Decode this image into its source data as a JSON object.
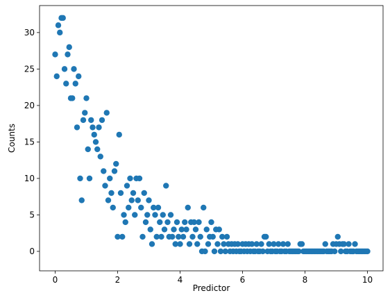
{
  "chart_data": {
    "type": "scatter",
    "xlabel": "Predictor",
    "ylabel": "Counts",
    "color": "#1f77b4",
    "xlim": [
      -0.5,
      10.5
    ],
    "ylim": [
      -2.67,
      33.7
    ],
    "xticks": [
      0,
      2,
      4,
      6,
      8,
      10
    ],
    "yticks": [
      0,
      5,
      10,
      15,
      20,
      25,
      30
    ],
    "grid": false,
    "x": [
      0,
      0.05,
      0.1,
      0.15,
      0.2,
      0.25,
      0.3,
      0.35,
      0.4,
      0.45,
      0.5,
      0.55,
      0.6,
      0.65,
      0.7,
      0.75,
      0.8,
      0.85,
      0.9,
      0.95,
      1,
      1.05,
      1.1,
      1.15,
      1.2,
      1.25,
      1.3,
      1.35,
      1.4,
      1.45,
      1.5,
      1.55,
      1.6,
      1.65,
      1.7,
      1.75,
      1.8,
      1.85,
      1.9,
      1.95,
      2,
      2.05,
      2.1,
      2.15,
      2.2,
      2.25,
      2.3,
      2.35,
      2.4,
      2.45,
      2.5,
      2.55,
      2.6,
      2.65,
      2.7,
      2.75,
      2.8,
      2.85,
      2.9,
      2.95,
      3,
      3.05,
      3.1,
      3.15,
      3.2,
      3.25,
      3.3,
      3.35,
      3.4,
      3.45,
      3.5,
      3.55,
      3.6,
      3.65,
      3.7,
      3.75,
      3.8,
      3.85,
      3.9,
      3.95,
      4,
      4.05,
      4.1,
      4.15,
      4.2,
      4.25,
      4.3,
      4.35,
      4.4,
      4.45,
      4.5,
      4.55,
      4.6,
      4.65,
      4.7,
      4.75,
      4.8,
      4.85,
      4.9,
      4.95,
      5,
      5.05,
      5.1,
      5.15,
      5.2,
      5.25,
      5.3,
      5.35,
      5.4,
      5.45,
      5.5,
      5.55,
      5.6,
      5.65,
      5.7,
      5.75,
      5.8,
      5.85,
      5.9,
      5.95,
      6,
      6.05,
      6.1,
      6.15,
      6.2,
      6.25,
      6.3,
      6.35,
      6.4,
      6.45,
      6.5,
      6.55,
      6.6,
      6.65,
      6.7,
      6.75,
      6.8,
      6.85,
      6.9,
      6.95,
      7,
      7.05,
      7.1,
      7.15,
      7.2,
      7.25,
      7.3,
      7.35,
      7.4,
      7.45,
      7.5,
      7.55,
      7.6,
      7.65,
      7.7,
      7.75,
      7.8,
      7.85,
      7.9,
      7.95,
      8,
      8.05,
      8.1,
      8.15,
      8.2,
      8.25,
      8.3,
      8.35,
      8.4,
      8.45,
      8.5,
      8.55,
      8.6,
      8.65,
      8.7,
      8.75,
      8.8,
      8.85,
      8.9,
      8.95,
      9,
      9.05,
      9.1,
      9.15,
      9.2,
      9.25,
      9.3,
      9.35,
      9.4,
      9.45,
      9.5,
      9.55,
      9.6,
      9.65,
      9.7,
      9.75,
      9.8,
      9.85,
      9.9,
      9.95,
      10
    ],
    "values": [
      27,
      24,
      31,
      30,
      32,
      32,
      25,
      23,
      27,
      28,
      21,
      21,
      25,
      23,
      17,
      24,
      10,
      7,
      18,
      19,
      21,
      14,
      10,
      18,
      17,
      16,
      15,
      14,
      17,
      13,
      18,
      11,
      9,
      19,
      7,
      10,
      8,
      6,
      11,
      12,
      2,
      16,
      8,
      2,
      5,
      4,
      9,
      6,
      10,
      7,
      8,
      5,
      10,
      7,
      10,
      6,
      2,
      8,
      4,
      5,
      7,
      3,
      1,
      6,
      5,
      2,
      6,
      4,
      2,
      5,
      3,
      9,
      4,
      2,
      5,
      2,
      3,
      1,
      4,
      2,
      1,
      3,
      2,
      4,
      3,
      6,
      1,
      4,
      2,
      4,
      3,
      1,
      4,
      2,
      0,
      6,
      0,
      3,
      1,
      2,
      4,
      2,
      0,
      3,
      1,
      3,
      0,
      2,
      1,
      0,
      2,
      1,
      0,
      1,
      0,
      1,
      0,
      1,
      0,
      0,
      1,
      0,
      1,
      0,
      1,
      0,
      1,
      0,
      0,
      1,
      0,
      0,
      1,
      0,
      2,
      2,
      0,
      1,
      0,
      0,
      1,
      0,
      0,
      1,
      0,
      0,
      1,
      0,
      0,
      1,
      0,
      0,
      0,
      0,
      0,
      0,
      0,
      1,
      1,
      0,
      0,
      0,
      0,
      0,
      0,
      0,
      0,
      0,
      0,
      0,
      0,
      0,
      0,
      1,
      0,
      0,
      0,
      0,
      1,
      0,
      1,
      2,
      1,
      0,
      1,
      1,
      0,
      0,
      1,
      0,
      0,
      0,
      1,
      0,
      0,
      0,
      0,
      0,
      0,
      0,
      0
    ]
  }
}
